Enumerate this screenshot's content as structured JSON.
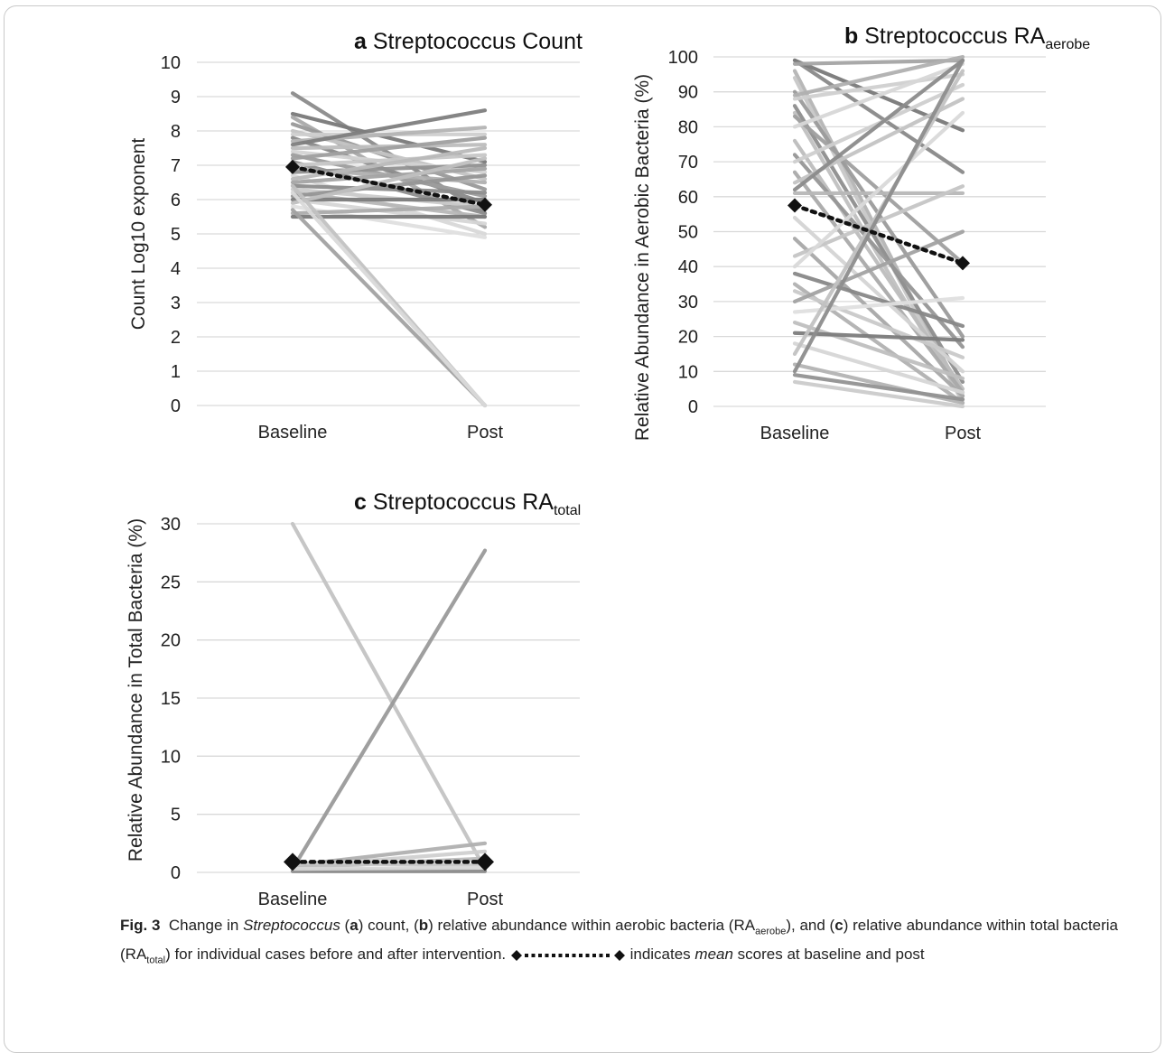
{
  "chart_data": [
    {
      "id": "a",
      "type": "line",
      "panel_letter": "a",
      "title": "Streptococcus Count",
      "ylabel": "Count Log10 exponent",
      "xlabel": "",
      "categories": [
        "Baseline",
        "Post"
      ],
      "ylim": [
        0,
        10
      ],
      "yticks": [
        "0",
        "1",
        "2",
        "3",
        "4",
        "5",
        "6",
        "7",
        "8",
        "9",
        "10"
      ],
      "grid": true,
      "mean": {
        "name": "mean",
        "values": [
          6.95,
          5.85
        ]
      },
      "series": [
        {
          "values": [
            9.1,
            5.6
          ],
          "color": "#8c8c8c"
        },
        {
          "values": [
            8.5,
            7.1
          ],
          "color": "#7a7a7a"
        },
        {
          "values": [
            8.4,
            5.2
          ],
          "color": "#a9a9a9"
        },
        {
          "values": [
            8.2,
            6.3
          ],
          "color": "#999999"
        },
        {
          "values": [
            8.0,
            6.6
          ],
          "color": "#c4c4c4"
        },
        {
          "values": [
            7.9,
            7.9
          ],
          "color": "#cfcfcf"
        },
        {
          "values": [
            7.8,
            5.9
          ],
          "color": "#8a8a8a"
        },
        {
          "values": [
            7.7,
            8.1
          ],
          "color": "#b5b5b5"
        },
        {
          "values": [
            7.6,
            8.6
          ],
          "color": "#7f7f7f"
        },
        {
          "values": [
            7.5,
            7.6
          ],
          "color": "#bdbdbd"
        },
        {
          "values": [
            7.4,
            6.8
          ],
          "color": "#d4d4d4"
        },
        {
          "values": [
            7.3,
            6.1
          ],
          "color": "#9e9e9e"
        },
        {
          "values": [
            7.2,
            7.8
          ],
          "color": "#a0a0a0"
        },
        {
          "values": [
            7.1,
            5.6
          ],
          "color": "#8f8f8f"
        },
        {
          "values": [
            7.0,
            7.3
          ],
          "color": "#c8c8c8"
        },
        {
          "values": [
            6.9,
            6.5
          ],
          "color": "#b0b0b0"
        },
        {
          "values": [
            6.8,
            7.0
          ],
          "color": "#929292"
        },
        {
          "values": [
            6.7,
            5.0
          ],
          "color": "#d9d9d9"
        },
        {
          "values": [
            6.6,
            7.5
          ],
          "color": "#bababa"
        },
        {
          "values": [
            6.5,
            6.9
          ],
          "color": "#a5a5a5"
        },
        {
          "values": [
            6.4,
            6.2
          ],
          "color": "#8d8d8d"
        },
        {
          "values": [
            6.3,
            5.8
          ],
          "color": "#cccccc"
        },
        {
          "values": [
            6.2,
            5.5
          ],
          "color": "#b8b8b8"
        },
        {
          "values": [
            6.1,
            6.7
          ],
          "color": "#969696"
        },
        {
          "values": [
            6.0,
            5.3
          ],
          "color": "#d6d6d6"
        },
        {
          "values": [
            6.0,
            6.0
          ],
          "color": "#7d7d7d"
        },
        {
          "values": [
            5.9,
            7.2
          ],
          "color": "#c0c0c0"
        },
        {
          "values": [
            5.8,
            4.9
          ],
          "color": "#e0e0e0"
        },
        {
          "values": [
            5.6,
            5.8
          ],
          "color": "#acacac"
        },
        {
          "values": [
            5.5,
            5.5
          ],
          "color": "#7a7a7a"
        },
        {
          "values": [
            6.4,
            0.0
          ],
          "color": "#c2c2c2"
        },
        {
          "values": [
            5.7,
            0.0
          ],
          "color": "#a3a3a3"
        },
        {
          "values": [
            6.2,
            0.0
          ],
          "color": "#dadada"
        }
      ]
    },
    {
      "id": "b",
      "type": "line",
      "panel_letter": "b",
      "title": "Streptococcus RA",
      "title_subscript": "aerobe",
      "ylabel": "Relative Abundance in Aerobic Bacteria (%)",
      "xlabel": "",
      "categories": [
        "Baseline",
        "Post"
      ],
      "ylim": [
        0,
        100
      ],
      "yticks": [
        "0",
        "10",
        "20",
        "30",
        "40",
        "50",
        "60",
        "70",
        "80",
        "90",
        "100"
      ],
      "grid": true,
      "mean": {
        "name": "mean",
        "values": [
          57.5,
          41
        ]
      },
      "series": [
        {
          "values": [
            99,
            67
          ],
          "color": "#8a8a8a"
        },
        {
          "values": [
            99,
            79
          ],
          "color": "#7a7a7a"
        },
        {
          "values": [
            98,
            99
          ],
          "color": "#a5a5a5"
        },
        {
          "values": [
            96,
            3
          ],
          "color": "#b5b5b5"
        },
        {
          "values": [
            94,
            1
          ],
          "color": "#c8c8c8"
        },
        {
          "values": [
            90,
            20
          ],
          "color": "#9b9b9b"
        },
        {
          "values": [
            89,
            100
          ],
          "color": "#b0b0b0"
        },
        {
          "values": [
            88,
            95
          ],
          "color": "#d0d0d0"
        },
        {
          "values": [
            86,
            7
          ],
          "color": "#8f8f8f"
        },
        {
          "values": [
            84,
            2
          ],
          "color": "#c0c0c0"
        },
        {
          "values": [
            83,
            41
          ],
          "color": "#a0a0a0"
        },
        {
          "values": [
            80,
            98
          ],
          "color": "#d8d8d8"
        },
        {
          "values": [
            76,
            5
          ],
          "color": "#bdbdbd"
        },
        {
          "values": [
            72,
            17
          ],
          "color": "#969696"
        },
        {
          "values": [
            70,
            92
          ],
          "color": "#cfcfcf"
        },
        {
          "values": [
            67,
            4
          ],
          "color": "#aaaaaa"
        },
        {
          "values": [
            64,
            88
          ],
          "color": "#c4c4c4"
        },
        {
          "values": [
            62,
            99
          ],
          "color": "#8c8c8c"
        },
        {
          "values": [
            61,
            61
          ],
          "color": "#b8b8b8"
        },
        {
          "values": [
            54,
            10
          ],
          "color": "#d4d4d4"
        },
        {
          "values": [
            48,
            3
          ],
          "color": "#a8a8a8"
        },
        {
          "values": [
            43,
            63
          ],
          "color": "#c6c6c6"
        },
        {
          "values": [
            40,
            84
          ],
          "color": "#dadada"
        },
        {
          "values": [
            38,
            23
          ],
          "color": "#888888"
        },
        {
          "values": [
            35,
            1
          ],
          "color": "#b2b2b2"
        },
        {
          "values": [
            33,
            14
          ],
          "color": "#cacaca"
        },
        {
          "values": [
            30,
            50
          ],
          "color": "#a3a3a3"
        },
        {
          "values": [
            27,
            31
          ],
          "color": "#e0e0e0"
        },
        {
          "values": [
            24,
            8
          ],
          "color": "#bfbfbf"
        },
        {
          "values": [
            21,
            19
          ],
          "color": "#7d7d7d"
        },
        {
          "values": [
            18,
            4
          ],
          "color": "#d6d6d6"
        },
        {
          "values": [
            15,
            96
          ],
          "color": "#c2c2c2"
        },
        {
          "values": [
            12,
            1
          ],
          "color": "#b4b4b4"
        },
        {
          "values": [
            9,
            2
          ],
          "color": "#939393"
        },
        {
          "values": [
            7,
            0
          ],
          "color": "#cccccc"
        },
        {
          "values": [
            10,
            99
          ],
          "color": "#8e8e8e"
        }
      ]
    },
    {
      "id": "c",
      "type": "line",
      "panel_letter": "c",
      "title": "Streptococcus RA",
      "title_subscript": "total",
      "ylabel": "Relative Abundance in Total Bacteria (%)",
      "xlabel": "",
      "categories": [
        "Baseline",
        "Post"
      ],
      "ylim": [
        0,
        30
      ],
      "yticks": [
        "0",
        "5",
        "10",
        "15",
        "20",
        "25",
        "30"
      ],
      "grid": true,
      "mean": {
        "name": "mean",
        "values": [
          0.9,
          0.9
        ]
      },
      "series": [
        {
          "values": [
            30,
            0.3
          ],
          "color": "#c4c4c4"
        },
        {
          "values": [
            0.3,
            27.7
          ],
          "color": "#9a9a9a"
        },
        {
          "values": [
            0.6,
            2.5
          ],
          "color": "#b0b0b0"
        },
        {
          "values": [
            0.5,
            1.8
          ],
          "color": "#d0d0d0"
        },
        {
          "values": [
            0.4,
            1.2
          ],
          "color": "#bdbdbd"
        },
        {
          "values": [
            0.8,
            0.6
          ],
          "color": "#c8c8c8"
        },
        {
          "values": [
            0.2,
            0.2
          ],
          "color": "#a8a8a8"
        },
        {
          "values": [
            0.1,
            0.1
          ],
          "color": "#8e8e8e"
        },
        {
          "values": [
            0.3,
            0.4
          ],
          "color": "#d8d8d8"
        }
      ]
    }
  ],
  "caption": {
    "fig_label": "Fig. 3",
    "t1": "Change in ",
    "italic1": "Streptococcus",
    "t2": " (",
    "a": "a",
    "t3": ") count, (",
    "b": "b",
    "t4": ") relative abundance within aerobic bacteria (RA",
    "sub1": "aerobe",
    "t5": "), and (",
    "c": "c",
    "t6": ") relative abundance within total bacteria (RA",
    "sub2": "total",
    "t7": ") for individual cases before and after intervention. ",
    "t8": " indicates ",
    "italic2": "mean",
    "t9": " scores at baseline and post"
  }
}
